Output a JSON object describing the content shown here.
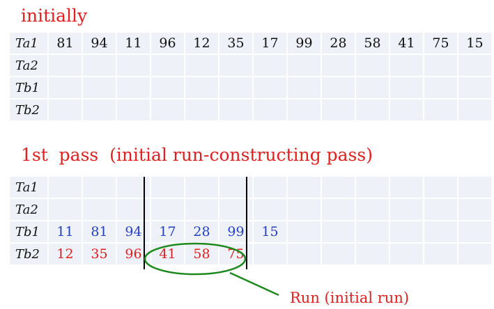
{
  "headings": {
    "initial": "initially",
    "first_pass": "1st  pass  (initial run-constructing pass)"
  },
  "table1": {
    "rows": [
      {
        "label": "Ta1",
        "color": "black",
        "values": [
          "81",
          "94",
          "11",
          "96",
          "12",
          "35",
          "17",
          "99",
          "28",
          "58",
          "41",
          "75",
          "15"
        ]
      },
      {
        "label": "Ta2",
        "color": "black",
        "values": []
      },
      {
        "label": "Tb1",
        "color": "black",
        "values": []
      },
      {
        "label": "Tb2",
        "color": "black",
        "values": []
      }
    ]
  },
  "table2": {
    "rows": [
      {
        "label": "Ta1",
        "color": "black",
        "values": []
      },
      {
        "label": "Ta2",
        "color": "black",
        "values": []
      },
      {
        "label": "Tb1",
        "color": "blue",
        "values": [
          "11",
          "81",
          "94",
          "17",
          "28",
          "99",
          "15"
        ]
      },
      {
        "label": "Tb2",
        "color": "red",
        "values": [
          "12",
          "35",
          "96",
          "41",
          "58",
          "75"
        ]
      }
    ]
  },
  "annotation": {
    "label": "Run (initial run)",
    "ellipse_color": "#1e8a1e"
  },
  "colors": {
    "heading": "#e02020",
    "blue_values": "#2340c8",
    "red_values": "#e02020",
    "cell_bg": "#eef1f7"
  }
}
